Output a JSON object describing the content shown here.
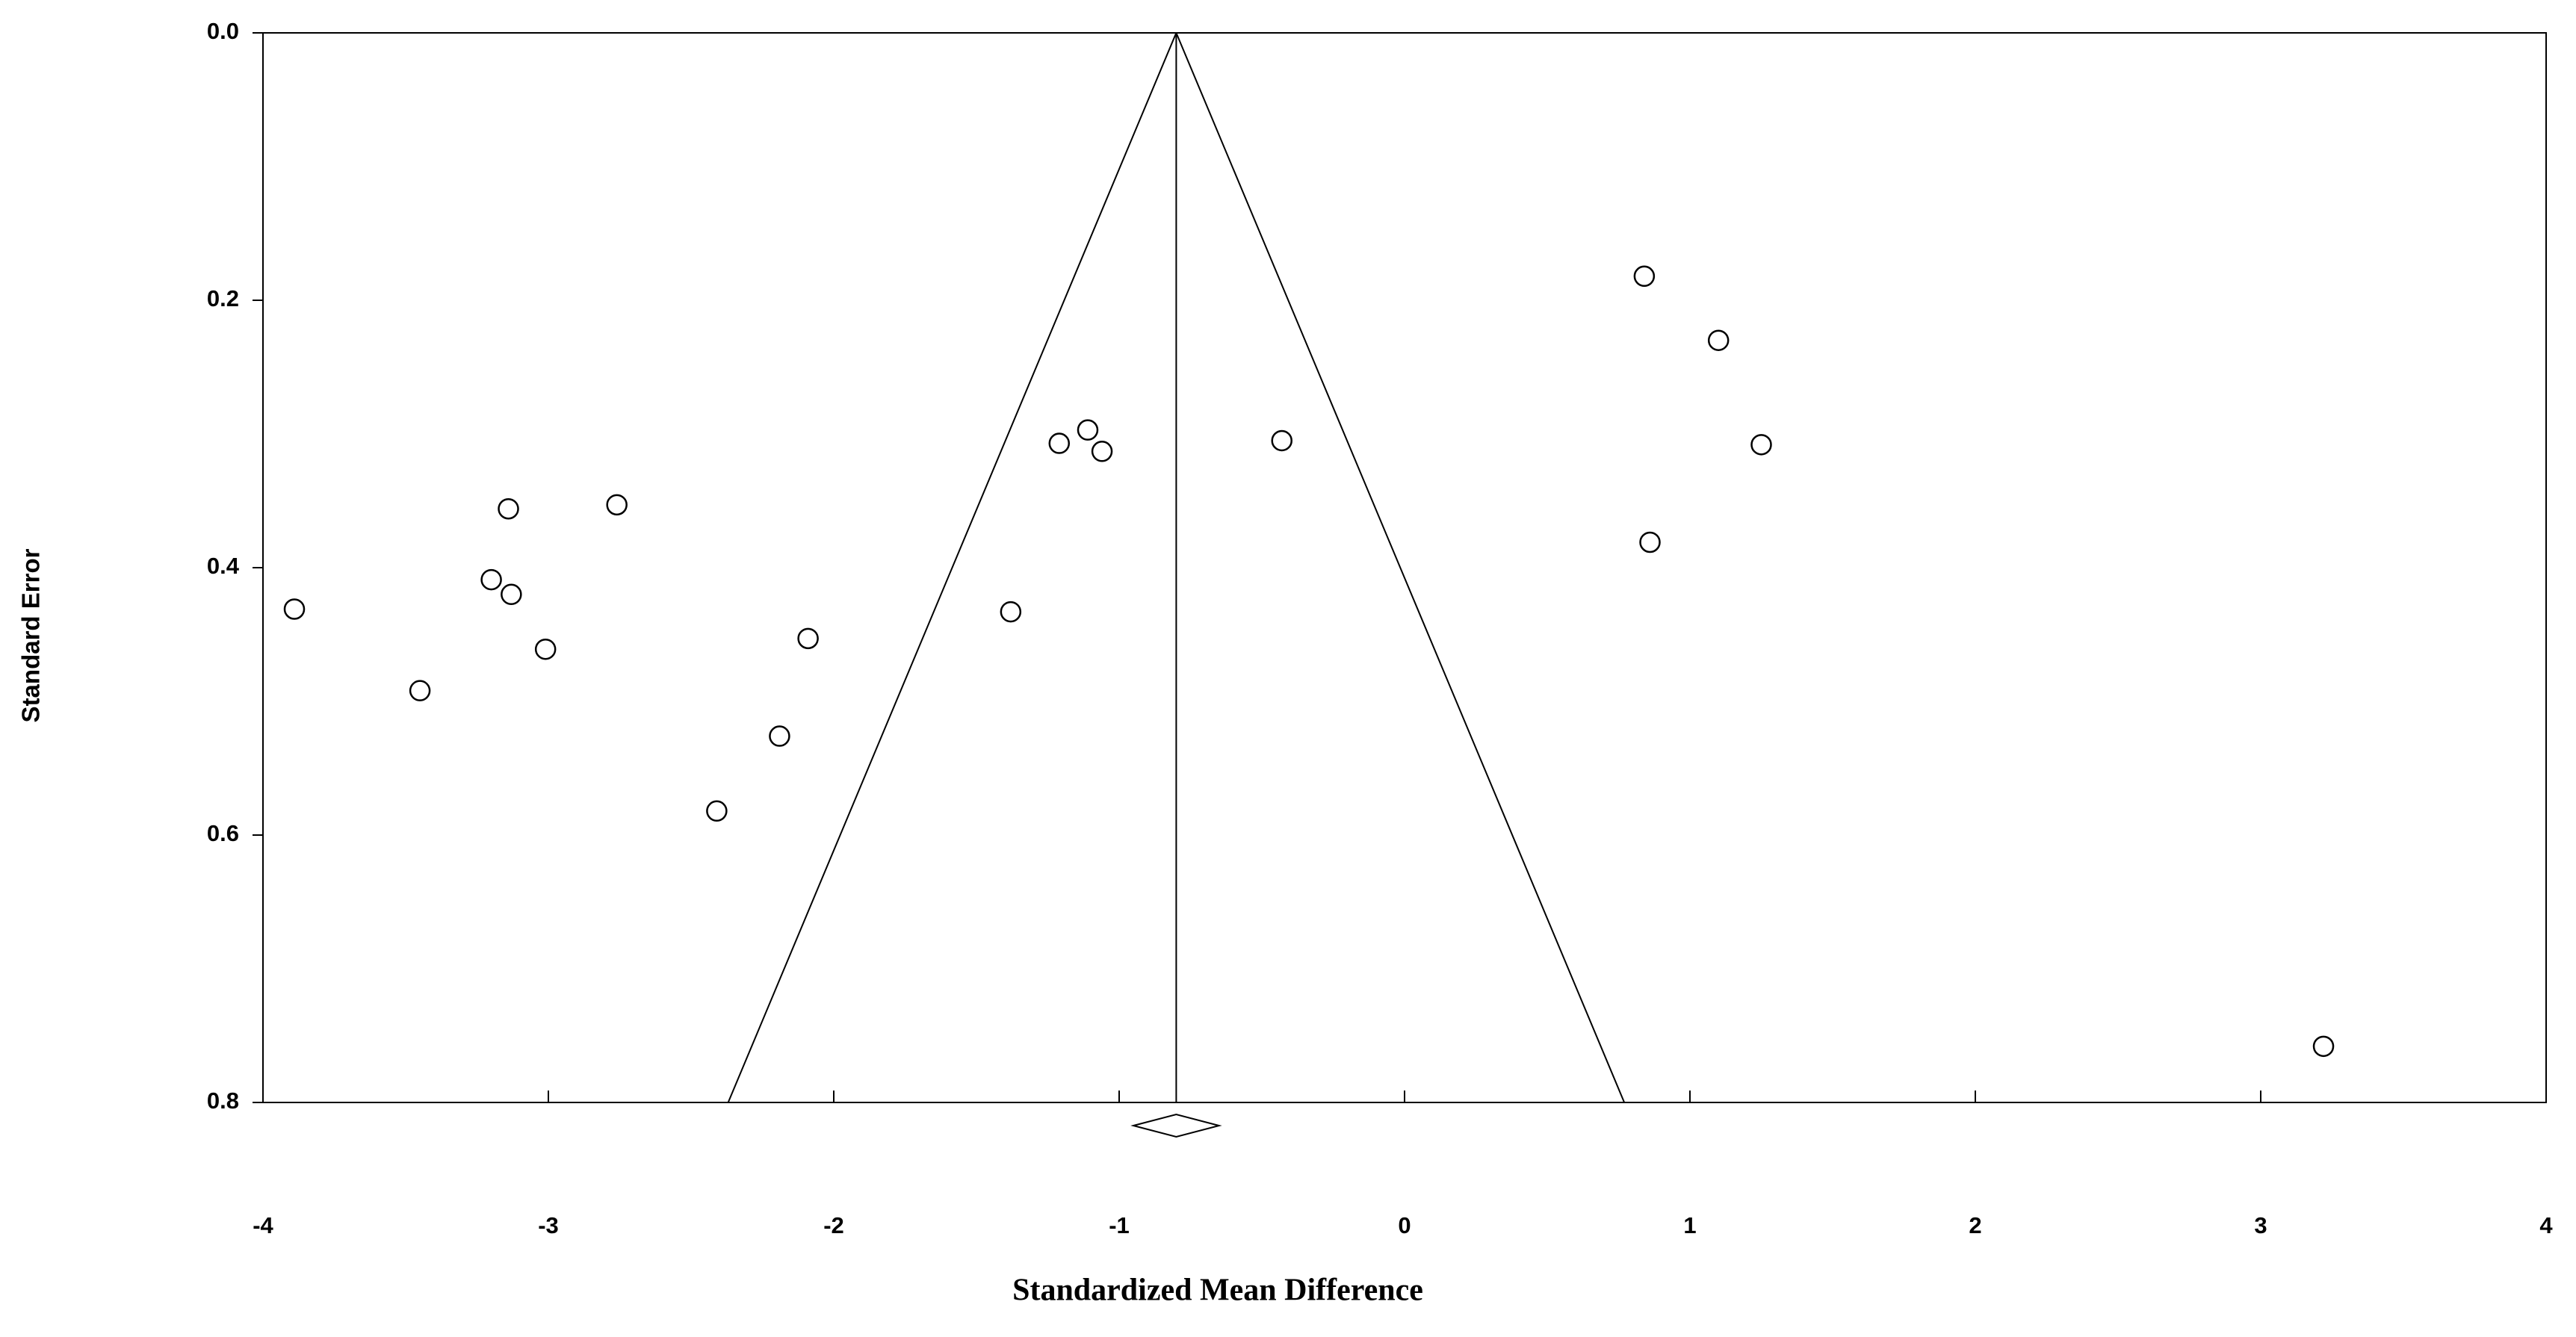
{
  "chart_data": {
    "type": "funnel",
    "x_label": "Standardized Mean Difference",
    "y_label": "Standard Error",
    "x": [
      -3.89,
      -3.45,
      -3.2,
      -3.14,
      -3.13,
      -3.01,
      -2.76,
      -2.41,
      -2.19,
      -2.09,
      -1.38,
      -1.21,
      -1.11,
      -1.06,
      -0.43,
      0.84,
      1.1,
      1.25,
      0.86,
      3.22
    ],
    "values": [
      0.431,
      0.492,
      0.409,
      0.356,
      0.42,
      0.461,
      0.353,
      0.582,
      0.526,
      0.453,
      0.433,
      0.307,
      0.297,
      0.313,
      0.305,
      0.182,
      0.23,
      0.308,
      0.381,
      0.758
    ],
    "summary": {
      "estimate": -0.8,
      "lower": -0.95,
      "upper": -0.65
    },
    "funnel_limits": [
      -2.37,
      0.77
    ],
    "xlim": [
      -4,
      4
    ],
    "xticks": [
      -4,
      -3,
      -2,
      -1,
      0,
      1,
      2,
      3,
      4
    ],
    "ylim": [
      0,
      0.8
    ],
    "yticks": [
      {
        "value": 0,
        "label": "0.0"
      },
      0.2,
      0.4,
      0.6,
      0.8
    ],
    "color": "#000000"
  }
}
